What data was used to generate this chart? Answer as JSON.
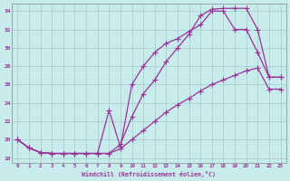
{
  "xlabel": "Windchill (Refroidissement éolien,°C)",
  "bg_color": "#c8ecec",
  "grid_color": "#a0cccc",
  "line_color": "#993399",
  "xlim": [
    -0.5,
    23.5
  ],
  "ylim": [
    17.5,
    34.8
  ],
  "xtick_values": [
    0,
    1,
    2,
    3,
    4,
    5,
    6,
    7,
    8,
    9,
    10,
    11,
    12,
    13,
    14,
    15,
    16,
    17,
    18,
    19,
    20,
    21,
    22,
    23
  ],
  "xtick_labels": [
    "0",
    "1",
    "2",
    "3",
    "4",
    "5",
    "6",
    "7",
    "8",
    "9",
    "10",
    "11",
    "12",
    "13",
    "14",
    "15",
    "16",
    "17",
    "18",
    "19",
    "20",
    "21",
    "22",
    "23"
  ],
  "ytick_values": [
    18,
    20,
    22,
    24,
    26,
    28,
    30,
    32,
    34
  ],
  "ytick_labels": [
    "18",
    "20",
    "22",
    "24",
    "26",
    "28",
    "30",
    "32",
    "34"
  ],
  "line1_x": [
    0,
    1,
    2,
    3,
    4,
    5,
    6,
    7,
    8,
    9,
    10,
    11,
    12,
    13,
    14,
    15,
    16,
    17,
    18,
    19,
    20,
    21,
    22,
    23
  ],
  "line1_y": [
    20.0,
    19.1,
    18.6,
    18.5,
    18.5,
    18.5,
    18.5,
    18.5,
    18.5,
    19.0,
    20.0,
    21.0,
    22.0,
    23.0,
    23.8,
    24.5,
    25.3,
    26.0,
    26.5,
    27.0,
    27.5,
    27.8,
    25.5,
    25.5
  ],
  "line2_x": [
    0,
    1,
    2,
    3,
    4,
    5,
    6,
    7,
    8,
    9,
    10,
    11,
    12,
    13,
    14,
    15,
    16,
    17,
    18,
    19,
    20,
    21,
    22,
    23
  ],
  "line2_y": [
    20.0,
    19.1,
    18.6,
    18.5,
    18.5,
    18.5,
    18.5,
    18.5,
    23.2,
    19.2,
    26.0,
    28.0,
    29.5,
    30.5,
    31.0,
    31.8,
    32.5,
    34.0,
    34.0,
    32.0,
    32.0,
    29.5,
    26.8,
    26.8
  ],
  "line3_x": [
    0,
    1,
    2,
    3,
    4,
    5,
    6,
    7,
    8,
    9,
    10,
    11,
    12,
    13,
    14,
    15,
    16,
    17,
    18,
    19,
    20,
    21,
    22,
    23
  ],
  "line3_y": [
    20.0,
    19.1,
    18.6,
    18.5,
    18.5,
    18.5,
    18.5,
    18.5,
    18.5,
    19.5,
    22.5,
    25.0,
    26.5,
    28.5,
    30.0,
    31.5,
    33.5,
    34.2,
    34.3,
    34.3,
    34.3,
    32.0,
    26.8,
    26.8
  ]
}
